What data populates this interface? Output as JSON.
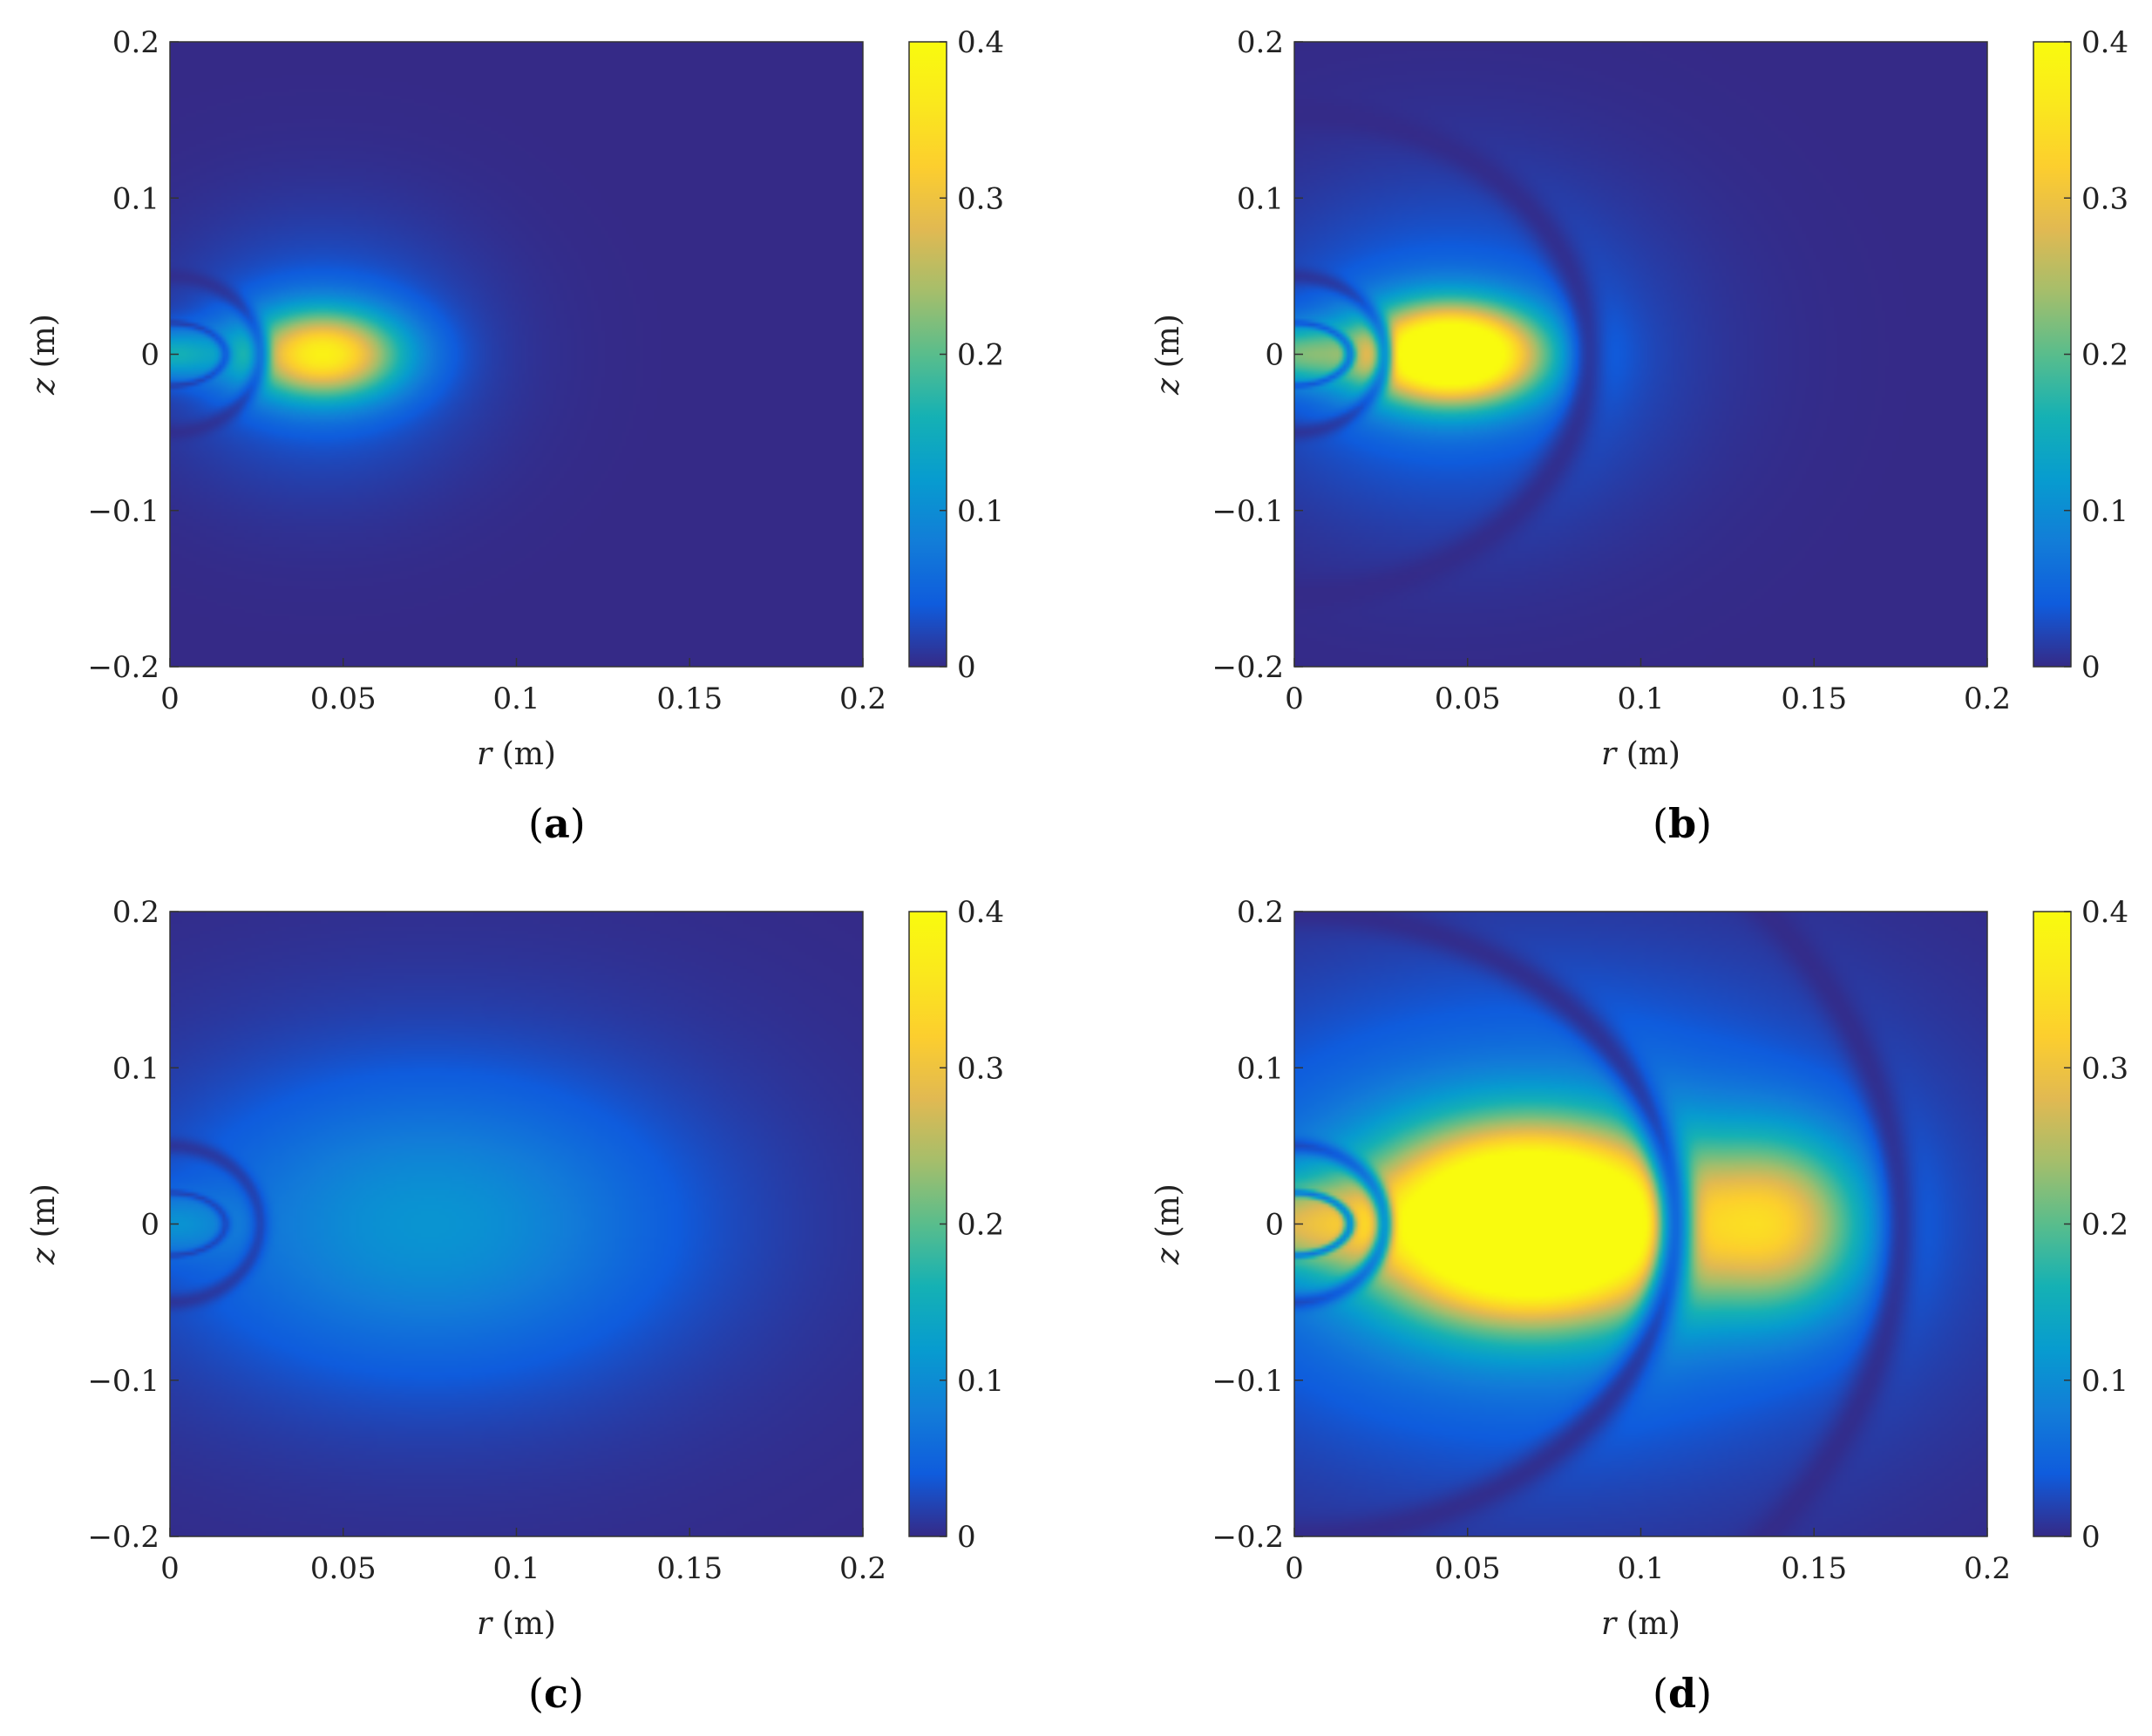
{
  "chart_data": [
    {
      "type": "heatmap",
      "panel_label": "a",
      "xlabel_var": "r",
      "xlabel_unit": " (m)",
      "ylabel_var": "z",
      "ylabel_unit": " (m)",
      "xlim": [
        0,
        0.2
      ],
      "ylim": [
        -0.2,
        0.2
      ],
      "x_ticks": [
        0,
        0.05,
        0.1,
        0.15,
        0.2
      ],
      "x_tick_labels": [
        "0",
        "0.05",
        "0.1",
        "0.15",
        "0.2"
      ],
      "y_ticks": [
        -0.2,
        -0.1,
        0,
        0.1,
        0.2
      ],
      "y_tick_labels": [
        "−0.2",
        "−0.1",
        "0",
        "0.1",
        "0.2"
      ],
      "colorbar": {
        "range": [
          0,
          0.4
        ],
        "ticks": [
          0,
          0.1,
          0.2,
          0.3,
          0.4
        ],
        "tick_labels": [
          "0",
          "0.1",
          "0.2",
          "0.3",
          "0.4"
        ],
        "colormap": "parula"
      },
      "features": {
        "background": 0.0,
        "peak": {
          "r": 0.044,
          "z": 0.0,
          "value": 0.33,
          "sr": 0.016,
          "sz": 0.02
        },
        "halo": {
          "value": 0.05,
          "sr": 0.03,
          "sz": 0.055
        },
        "near_axis": {
          "r": 0.01,
          "value": 0.13
        },
        "dark_rings_r": []
      }
    },
    {
      "type": "heatmap",
      "panel_label": "b",
      "xlabel_var": "r",
      "xlabel_unit": " (m)",
      "ylabel_var": "z",
      "ylabel_unit": " (m)",
      "xlim": [
        0,
        0.2
      ],
      "ylim": [
        -0.2,
        0.2
      ],
      "x_ticks": [
        0,
        0.05,
        0.1,
        0.15,
        0.2
      ],
      "x_tick_labels": [
        "0",
        "0.05",
        "0.1",
        "0.15",
        "0.2"
      ],
      "y_ticks": [
        -0.2,
        -0.1,
        0,
        0.1,
        0.2
      ],
      "y_tick_labels": [
        "−0.2",
        "−0.1",
        "0",
        "0.1",
        "0.2"
      ],
      "colorbar": {
        "range": [
          0,
          0.4
        ],
        "ticks": [
          0,
          0.1,
          0.2,
          0.3,
          0.4
        ],
        "tick_labels": [
          "0",
          "0.1",
          "0.2",
          "0.3",
          "0.4"
        ],
        "colormap": "parula"
      },
      "features": {
        "background": 0.0,
        "peak": {
          "r": 0.045,
          "z": 0.0,
          "value": 0.5,
          "sr": 0.018,
          "sz": 0.022
        },
        "halo": {
          "value": 0.06,
          "sr": 0.04,
          "sz": 0.07
        },
        "near_axis": {
          "r": 0.012,
          "value": 0.16
        },
        "dark_rings_r": [
          0.085
        ]
      }
    },
    {
      "type": "heatmap",
      "panel_label": "c",
      "xlabel_var": "r",
      "xlabel_unit": " (m)",
      "ylabel_var": "z",
      "ylabel_unit": " (m)",
      "xlim": [
        0,
        0.2
      ],
      "ylim": [
        -0.2,
        0.2
      ],
      "x_ticks": [
        0,
        0.05,
        0.1,
        0.15,
        0.2
      ],
      "x_tick_labels": [
        "0",
        "0.05",
        "0.1",
        "0.15",
        "0.2"
      ],
      "y_ticks": [
        -0.2,
        -0.1,
        0,
        0.1,
        0.2
      ],
      "y_tick_labels": [
        "−0.2",
        "−0.1",
        "0",
        "0.1",
        "0.2"
      ],
      "colorbar": {
        "range": [
          0,
          0.4
        ],
        "ticks": [
          0,
          0.1,
          0.2,
          0.3,
          0.4
        ],
        "tick_labels": [
          "0",
          "0.1",
          "0.2",
          "0.3",
          "0.4"
        ],
        "colormap": "parula"
      },
      "features": {
        "background": 0.0,
        "peak": {
          "r": 0.075,
          "z": 0.0,
          "value": 0.08,
          "sr": 0.045,
          "sz": 0.06
        },
        "halo": {
          "value": 0.03,
          "sr": 0.07,
          "sz": 0.1
        },
        "near_axis": {
          "r": 0.012,
          "value": 0.07
        },
        "dark_rings_r": []
      }
    },
    {
      "type": "heatmap",
      "panel_label": "d",
      "xlabel_var": "r",
      "xlabel_unit": " (m)",
      "ylabel_var": "z",
      "ylabel_unit": " (m)",
      "xlim": [
        0,
        0.2
      ],
      "ylim": [
        -0.2,
        0.2
      ],
      "x_ticks": [
        0,
        0.05,
        0.1,
        0.15,
        0.2
      ],
      "x_tick_labels": [
        "0",
        "0.05",
        "0.1",
        "0.15",
        "0.2"
      ],
      "y_ticks": [
        -0.2,
        -0.1,
        0,
        0.1,
        0.2
      ],
      "y_tick_labels": [
        "−0.2",
        "−0.1",
        "0",
        "0.1",
        "0.2"
      ],
      "colorbar": {
        "range": [
          0,
          0.4
        ],
        "ticks": [
          0,
          0.1,
          0.2,
          0.3,
          0.4
        ],
        "tick_labels": [
          "0",
          "0.1",
          "0.2",
          "0.3",
          "0.4"
        ],
        "colormap": "parula"
      },
      "features": {
        "background": 0.0,
        "peak": {
          "r": 0.068,
          "z": 0.0,
          "value": 0.6,
          "sr": 0.03,
          "sz": 0.04
        },
        "halo": {
          "value": 0.1,
          "sr": 0.07,
          "sz": 0.1
        },
        "secondary_peak": {
          "r": 0.14,
          "z": 0.0,
          "value": 0.24,
          "sr": 0.018,
          "sz": 0.04
        },
        "near_axis": {
          "r": 0.018,
          "value": 0.17
        },
        "dark_rings_r": [
          0.11,
          0.175
        ]
      }
    }
  ]
}
